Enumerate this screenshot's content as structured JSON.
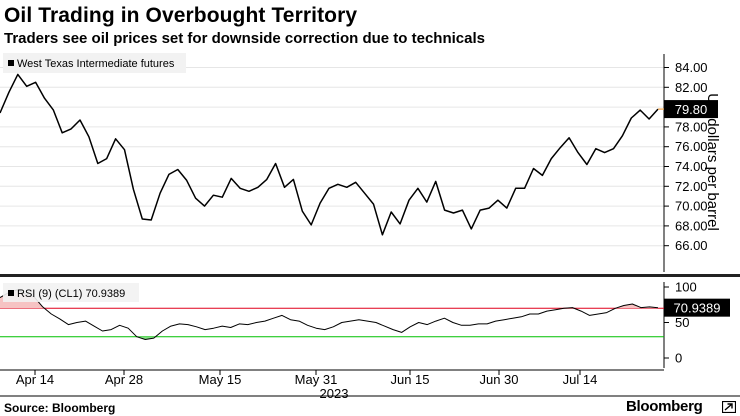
{
  "header": {
    "title": "Oil Trading in Overbought Territory",
    "subtitle": "Traders see oil prices set for downside correction due to technicals"
  },
  "footer": {
    "source": "Source: Bloomberg",
    "brand": "Bloomberg",
    "brand_icon": "arrow-box-icon"
  },
  "colors": {
    "line": "#000000",
    "grid": "#e6e6e6",
    "overbought_line": "#e0001b",
    "oversold_line": "#00c000",
    "overbought_fill": "#f6c3c3",
    "oversold_fill": "#7ee07e",
    "last_value_tag": "#000000",
    "last_value_line": "#f2a34a"
  },
  "chart_data": [
    {
      "type": "line",
      "legend": "West Texas Intermediate futures",
      "legend_placement": "top-left",
      "ylabel": "US dollars per barrel",
      "ylim": [
        65,
        85
      ],
      "yticks": [
        "84.00",
        "82.00",
        "80.00",
        "78.00",
        "76.00",
        "74.00",
        "72.00",
        "70.00",
        "68.00",
        "66.00"
      ],
      "grid": true,
      "last_value_label": "79.80",
      "series": [
        {
          "values": [
            79.4,
            81.5,
            83.3,
            82.1,
            82.5,
            80.9,
            79.7,
            77.4,
            77.8,
            78.7,
            77.0,
            74.3,
            74.8,
            76.8,
            75.7,
            71.7,
            68.7,
            68.6,
            71.3,
            73.2,
            73.7,
            72.6,
            70.8,
            70.0,
            71.1,
            70.9,
            72.8,
            71.8,
            71.5,
            71.9,
            72.7,
            74.3,
            71.9,
            72.7,
            69.5,
            68.1,
            70.3,
            71.8,
            72.2,
            71.9,
            72.4,
            71.3,
            70.2,
            67.1,
            69.4,
            68.2,
            70.6,
            71.8,
            70.4,
            72.5,
            69.6,
            69.3,
            69.6,
            67.7,
            69.6,
            69.8,
            70.6,
            69.8,
            71.8,
            71.8,
            73.8,
            73.1,
            74.8,
            75.9,
            76.9,
            75.4,
            74.2,
            75.8,
            75.4,
            75.8,
            77.1,
            78.9,
            79.7,
            78.8,
            79.8
          ]
        }
      ]
    },
    {
      "type": "line",
      "legend": "RSI (9) (CL1) 70.9389",
      "legend_placement": "top-left",
      "ylim": [
        -10,
        110
      ],
      "yticks": [
        "100",
        "50",
        "0"
      ],
      "overbought_level": 70,
      "oversold_level": 30,
      "last_value_label": "70.9389",
      "series": [
        {
          "values": [
            85,
            92,
            96,
            90,
            86,
            72,
            62,
            55,
            47,
            50,
            52,
            45,
            38,
            40,
            46,
            42,
            30,
            26,
            28,
            38,
            45,
            48,
            47,
            44,
            40,
            42,
            45,
            43,
            48,
            47,
            50,
            52,
            56,
            60,
            54,
            52,
            46,
            42,
            40,
            44,
            50,
            52,
            54,
            52,
            50,
            45,
            40,
            36,
            44,
            50,
            47,
            52,
            56,
            50,
            46,
            46,
            48,
            48,
            52,
            54,
            56,
            58,
            62,
            62,
            66,
            68,
            70,
            71,
            66,
            60,
            62,
            64,
            70,
            74,
            76,
            71,
            72,
            70.9
          ]
        }
      ]
    },
    {
      "type": "axis",
      "xlabel": "",
      "xticks": [
        "Apr 14",
        "Apr 28",
        "May 15",
        "May 31",
        "Jun 15",
        "Jun 30",
        "Jul 14"
      ],
      "year_label": "2023"
    }
  ]
}
